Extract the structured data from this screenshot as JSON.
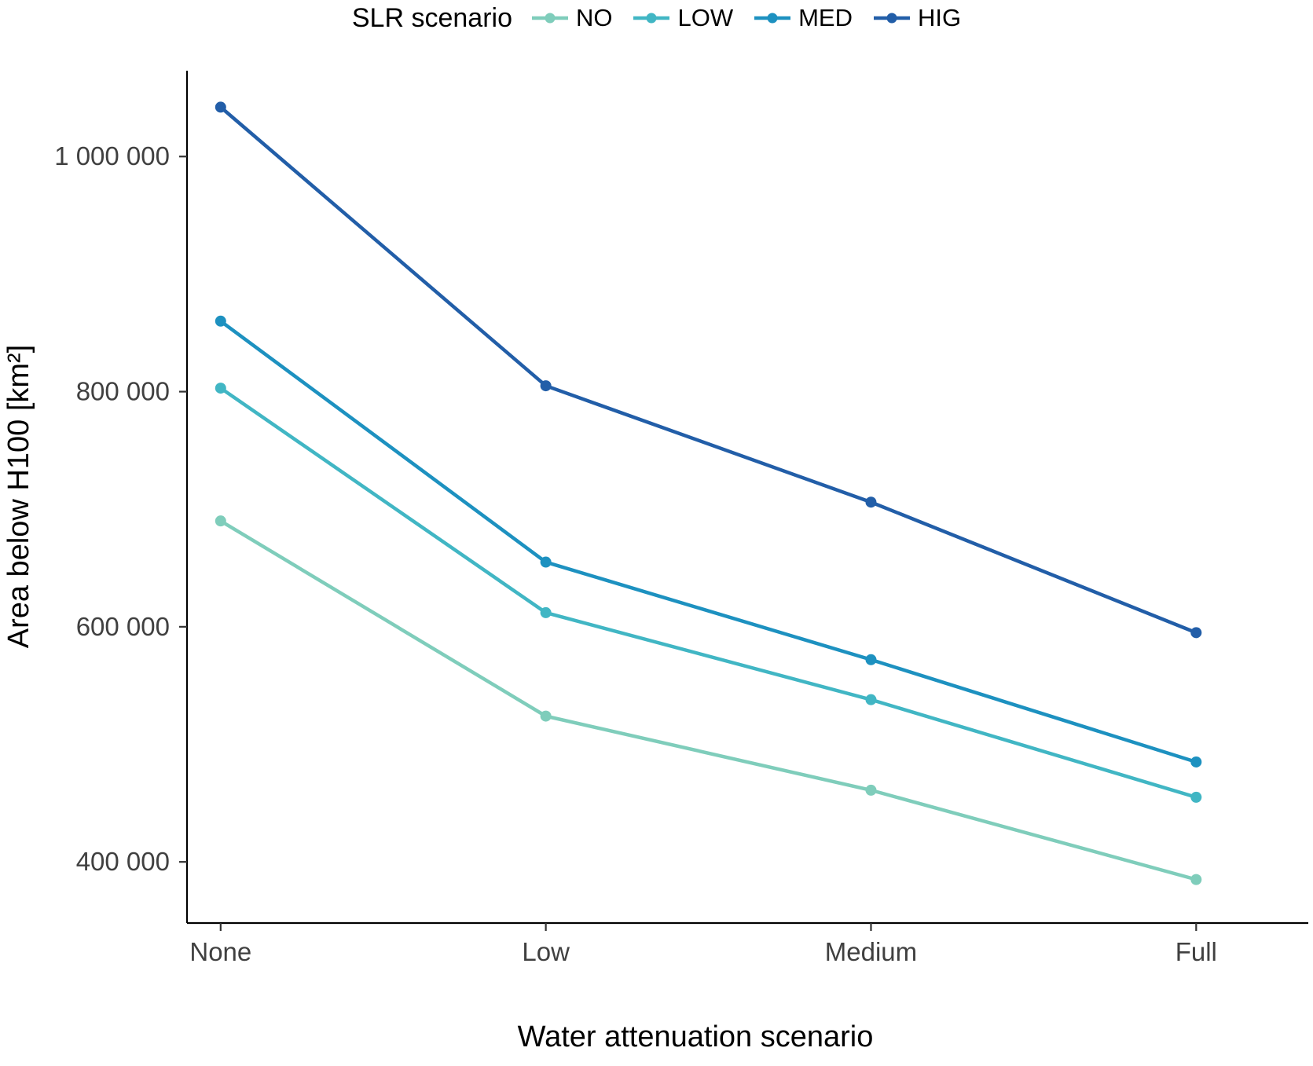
{
  "chart_data": {
    "type": "line",
    "title": "",
    "xlabel": "Water attenuation scenario",
    "ylabel": "Area below H100 [km²]",
    "legend_title": "SLR scenario",
    "legend_position": "top",
    "grid": false,
    "categories": [
      "None",
      "Low",
      "Medium",
      "Full"
    ],
    "series": [
      {
        "name": "NO",
        "color": "#7fcdbb",
        "values": [
          690000,
          524000,
          461000,
          385000
        ]
      },
      {
        "name": "LOW",
        "color": "#41b6c4",
        "values": [
          803000,
          612000,
          538000,
          455000
        ]
      },
      {
        "name": "MED",
        "color": "#1d91c0",
        "values": [
          860000,
          655000,
          572000,
          485000
        ]
      },
      {
        "name": "HIG",
        "color": "#225ea8",
        "values": [
          1042000,
          805000,
          706000,
          595000
        ]
      }
    ],
    "y_ticks": [
      {
        "value": 400000,
        "label": "400 000"
      },
      {
        "value": 600000,
        "label": "600 000"
      },
      {
        "value": 800000,
        "label": "800 000"
      },
      {
        "value": 1000000,
        "label": "1 000 000"
      }
    ],
    "ylim": [
      348000,
      1073000
    ]
  }
}
